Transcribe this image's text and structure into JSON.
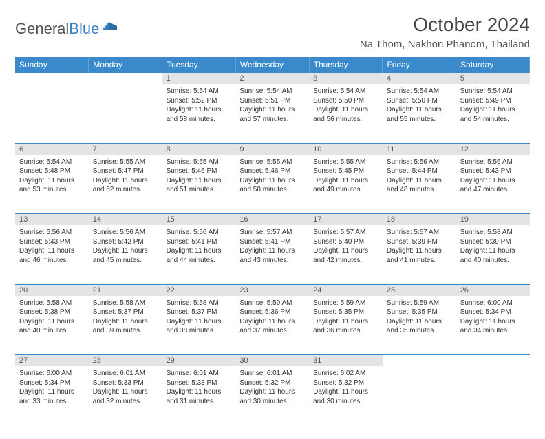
{
  "logo": {
    "text1": "General",
    "text2": "Blue"
  },
  "title": "October 2024",
  "location": "Na Thom, Nakhon Phanom, Thailand",
  "colors": {
    "header_bg": "#3a8acb",
    "header_text": "#ffffff",
    "daynum_bg": "#e4e4e4",
    "border": "#3a8acb",
    "logo_gray": "#555555",
    "logo_blue": "#3a7fc4",
    "text": "#333333"
  },
  "day_headers": [
    "Sunday",
    "Monday",
    "Tuesday",
    "Wednesday",
    "Thursday",
    "Friday",
    "Saturday"
  ],
  "weeks": [
    {
      "nums": [
        "",
        "",
        "1",
        "2",
        "3",
        "4",
        "5"
      ],
      "cells": [
        null,
        null,
        {
          "sunrise": "5:54 AM",
          "sunset": "5:52 PM",
          "daylight": "11 hours and 58 minutes."
        },
        {
          "sunrise": "5:54 AM",
          "sunset": "5:51 PM",
          "daylight": "11 hours and 57 minutes."
        },
        {
          "sunrise": "5:54 AM",
          "sunset": "5:50 PM",
          "daylight": "11 hours and 56 minutes."
        },
        {
          "sunrise": "5:54 AM",
          "sunset": "5:50 PM",
          "daylight": "11 hours and 55 minutes."
        },
        {
          "sunrise": "5:54 AM",
          "sunset": "5:49 PM",
          "daylight": "11 hours and 54 minutes."
        }
      ]
    },
    {
      "nums": [
        "6",
        "7",
        "8",
        "9",
        "10",
        "11",
        "12"
      ],
      "cells": [
        {
          "sunrise": "5:54 AM",
          "sunset": "5:48 PM",
          "daylight": "11 hours and 53 minutes."
        },
        {
          "sunrise": "5:55 AM",
          "sunset": "5:47 PM",
          "daylight": "11 hours and 52 minutes."
        },
        {
          "sunrise": "5:55 AM",
          "sunset": "5:46 PM",
          "daylight": "11 hours and 51 minutes."
        },
        {
          "sunrise": "5:55 AM",
          "sunset": "5:46 PM",
          "daylight": "11 hours and 50 minutes."
        },
        {
          "sunrise": "5:55 AM",
          "sunset": "5:45 PM",
          "daylight": "11 hours and 49 minutes."
        },
        {
          "sunrise": "5:56 AM",
          "sunset": "5:44 PM",
          "daylight": "11 hours and 48 minutes."
        },
        {
          "sunrise": "5:56 AM",
          "sunset": "5:43 PM",
          "daylight": "11 hours and 47 minutes."
        }
      ]
    },
    {
      "nums": [
        "13",
        "14",
        "15",
        "16",
        "17",
        "18",
        "19"
      ],
      "cells": [
        {
          "sunrise": "5:56 AM",
          "sunset": "5:43 PM",
          "daylight": "11 hours and 46 minutes."
        },
        {
          "sunrise": "5:56 AM",
          "sunset": "5:42 PM",
          "daylight": "11 hours and 45 minutes."
        },
        {
          "sunrise": "5:56 AM",
          "sunset": "5:41 PM",
          "daylight": "11 hours and 44 minutes."
        },
        {
          "sunrise": "5:57 AM",
          "sunset": "5:41 PM",
          "daylight": "11 hours and 43 minutes."
        },
        {
          "sunrise": "5:57 AM",
          "sunset": "5:40 PM",
          "daylight": "11 hours and 42 minutes."
        },
        {
          "sunrise": "5:57 AM",
          "sunset": "5:39 PM",
          "daylight": "11 hours and 41 minutes."
        },
        {
          "sunrise": "5:58 AM",
          "sunset": "5:39 PM",
          "daylight": "11 hours and 40 minutes."
        }
      ]
    },
    {
      "nums": [
        "20",
        "21",
        "22",
        "23",
        "24",
        "25",
        "26"
      ],
      "cells": [
        {
          "sunrise": "5:58 AM",
          "sunset": "5:38 PM",
          "daylight": "11 hours and 40 minutes."
        },
        {
          "sunrise": "5:58 AM",
          "sunset": "5:37 PM",
          "daylight": "11 hours and 39 minutes."
        },
        {
          "sunrise": "5:58 AM",
          "sunset": "5:37 PM",
          "daylight": "11 hours and 38 minutes."
        },
        {
          "sunrise": "5:59 AM",
          "sunset": "5:36 PM",
          "daylight": "11 hours and 37 minutes."
        },
        {
          "sunrise": "5:59 AM",
          "sunset": "5:35 PM",
          "daylight": "11 hours and 36 minutes."
        },
        {
          "sunrise": "5:59 AM",
          "sunset": "5:35 PM",
          "daylight": "11 hours and 35 minutes."
        },
        {
          "sunrise": "6:00 AM",
          "sunset": "5:34 PM",
          "daylight": "11 hours and 34 minutes."
        }
      ]
    },
    {
      "nums": [
        "27",
        "28",
        "29",
        "30",
        "31",
        "",
        ""
      ],
      "cells": [
        {
          "sunrise": "6:00 AM",
          "sunset": "5:34 PM",
          "daylight": "11 hours and 33 minutes."
        },
        {
          "sunrise": "6:01 AM",
          "sunset": "5:33 PM",
          "daylight": "11 hours and 32 minutes."
        },
        {
          "sunrise": "6:01 AM",
          "sunset": "5:33 PM",
          "daylight": "11 hours and 31 minutes."
        },
        {
          "sunrise": "6:01 AM",
          "sunset": "5:32 PM",
          "daylight": "11 hours and 30 minutes."
        },
        {
          "sunrise": "6:02 AM",
          "sunset": "5:32 PM",
          "daylight": "11 hours and 30 minutes."
        },
        null,
        null
      ]
    }
  ],
  "labels": {
    "sunrise": "Sunrise:",
    "sunset": "Sunset:",
    "daylight": "Daylight:"
  }
}
